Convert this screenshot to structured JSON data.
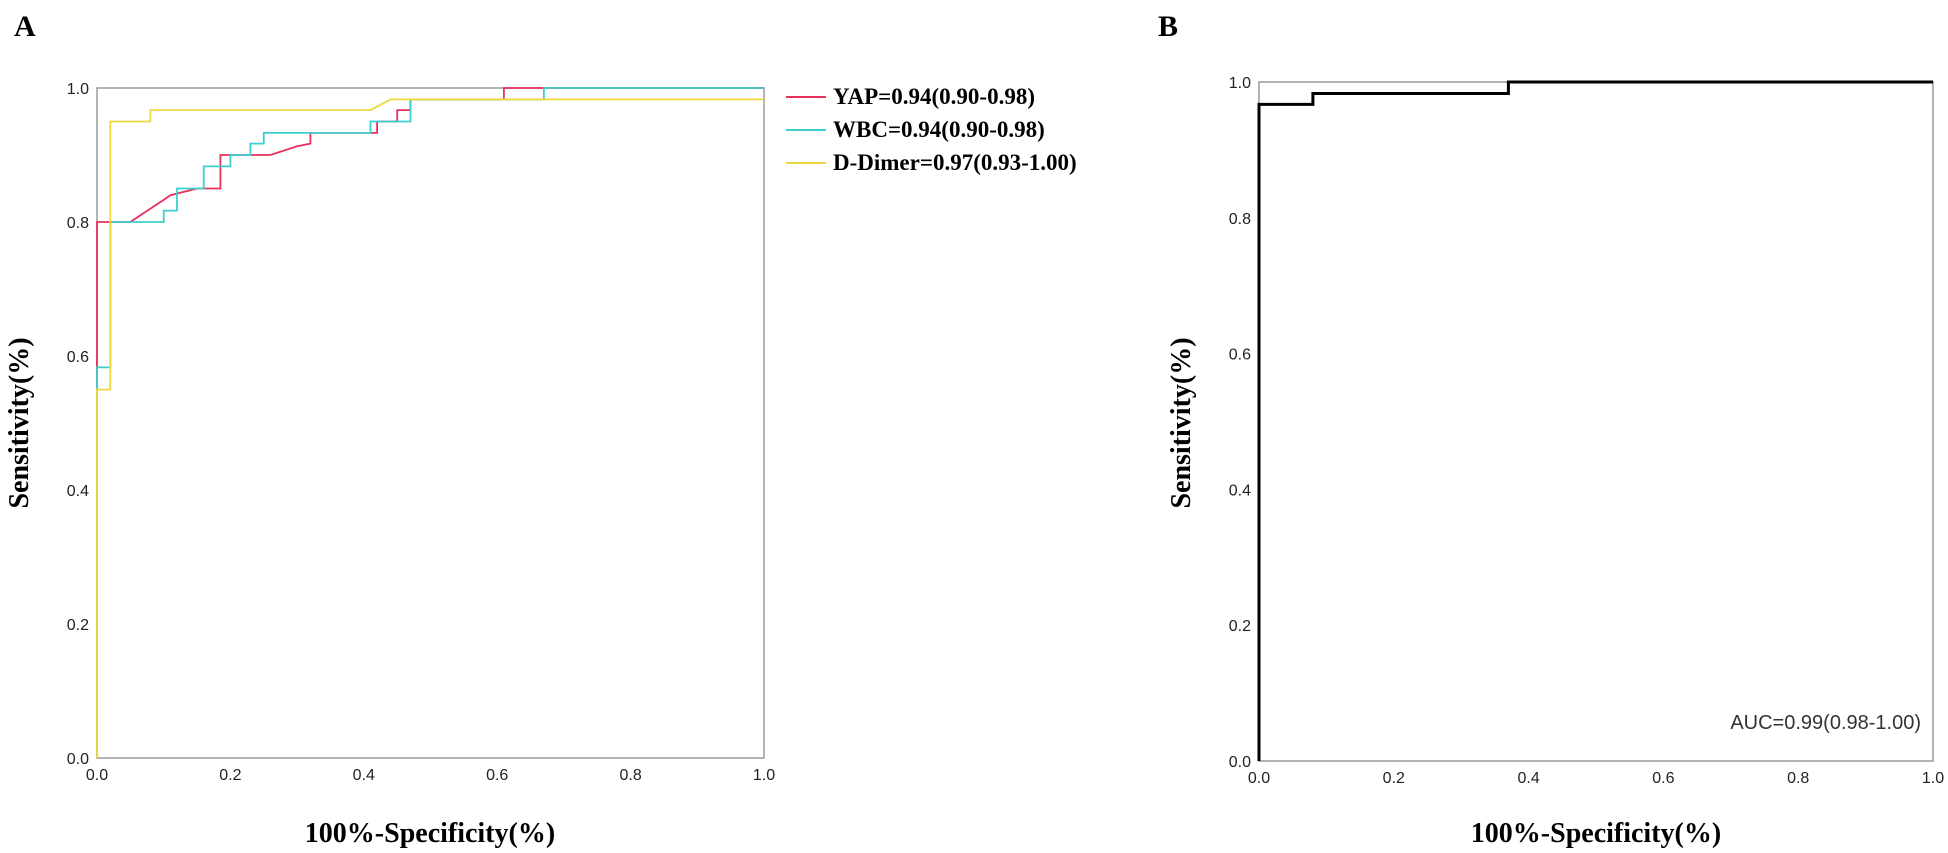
{
  "colors": {
    "YAP": "#e8305a",
    "WBC": "#3ccfcf",
    "D-Dimer": "#eed83e",
    "frame": "#9a9a9a",
    "panel_b_curve": "#000000"
  },
  "chart_data": [
    {
      "panel": "A",
      "type": "line",
      "xlabel": "100%-Specificity(%)",
      "ylabel": "Sensitivity(%)",
      "xlim": [
        0,
        1
      ],
      "ylim": [
        0,
        1
      ],
      "xticks": [
        "0.0",
        "0.2",
        "0.4",
        "0.6",
        "0.8",
        "1.0"
      ],
      "yticks": [
        "0.0",
        "0.2",
        "0.4",
        "0.6",
        "0.8",
        "1.0"
      ],
      "legend_position": "right-outside",
      "series": [
        {
          "name": "YAP=0.94(0.90-0.98)",
          "color_key": "YAP",
          "x": [
            0,
            0,
            0.05,
            0.065,
            0.08,
            0.08,
            0.1,
            0.11,
            0.15,
            0.185,
            0.185,
            0.26,
            0.3,
            0.32,
            0.32,
            0.42,
            0.42,
            0.45,
            0.45,
            0.47,
            0.47,
            0.51,
            0.51,
            0.61,
            0.61,
            1.0
          ],
          "y": [
            0,
            0.8,
            0.8,
            0.81,
            0.82,
            0.82,
            0.833,
            0.84,
            0.85,
            0.85,
            0.9,
            0.9,
            0.913,
            0.917,
            0.933,
            0.933,
            0.95,
            0.95,
            0.967,
            0.967,
            0.983,
            0.983,
            0.983,
            0.983,
            1.0,
            1.0
          ]
        },
        {
          "name": "WBC=0.94(0.90-0.98)",
          "color_key": "WBC",
          "x": [
            0,
            0,
            0.02,
            0.02,
            0.1,
            0.1,
            0.12,
            0.12,
            0.16,
            0.16,
            0.2,
            0.2,
            0.23,
            0.23,
            0.25,
            0.25,
            0.41,
            0.41,
            0.47,
            0.47,
            0.67,
            0.67,
            1.0
          ],
          "y": [
            0,
            0.583,
            0.583,
            0.8,
            0.8,
            0.817,
            0.817,
            0.85,
            0.85,
            0.883,
            0.883,
            0.9,
            0.9,
            0.917,
            0.917,
            0.933,
            0.933,
            0.95,
            0.95,
            0.983,
            0.983,
            1.0,
            1.0
          ]
        },
        {
          "name": "D-Dimer=0.97(0.93-1.00)",
          "color_key": "D-Dimer",
          "x": [
            0,
            0,
            0.02,
            0.02,
            0.08,
            0.08,
            0.41,
            0.44,
            0.44,
            1.0
          ],
          "y": [
            0,
            0.55,
            0.55,
            0.95,
            0.95,
            0.967,
            0.967,
            0.983,
            0.983,
            0.983
          ]
        }
      ]
    },
    {
      "panel": "B",
      "type": "line",
      "xlabel": "100%-Specificity(%)",
      "ylabel": "Sensitivity(%)",
      "xlim": [
        0,
        1
      ],
      "ylim": [
        0,
        1
      ],
      "xticks": [
        "0.0",
        "0.2",
        "0.4",
        "0.6",
        "0.8",
        "1.0"
      ],
      "yticks": [
        "0.0",
        "0.2",
        "0.4",
        "0.6",
        "0.8",
        "1.0"
      ],
      "annotation": "AUC=0.99(0.98-1.00)",
      "series": [
        {
          "color_key": "panel_b_curve",
          "x": [
            0,
            0,
            0.08,
            0.08,
            0.37,
            0.37,
            1.0
          ],
          "y": [
            0,
            0.967,
            0.967,
            0.983,
            0.983,
            1.0,
            1.0
          ]
        }
      ]
    }
  ]
}
